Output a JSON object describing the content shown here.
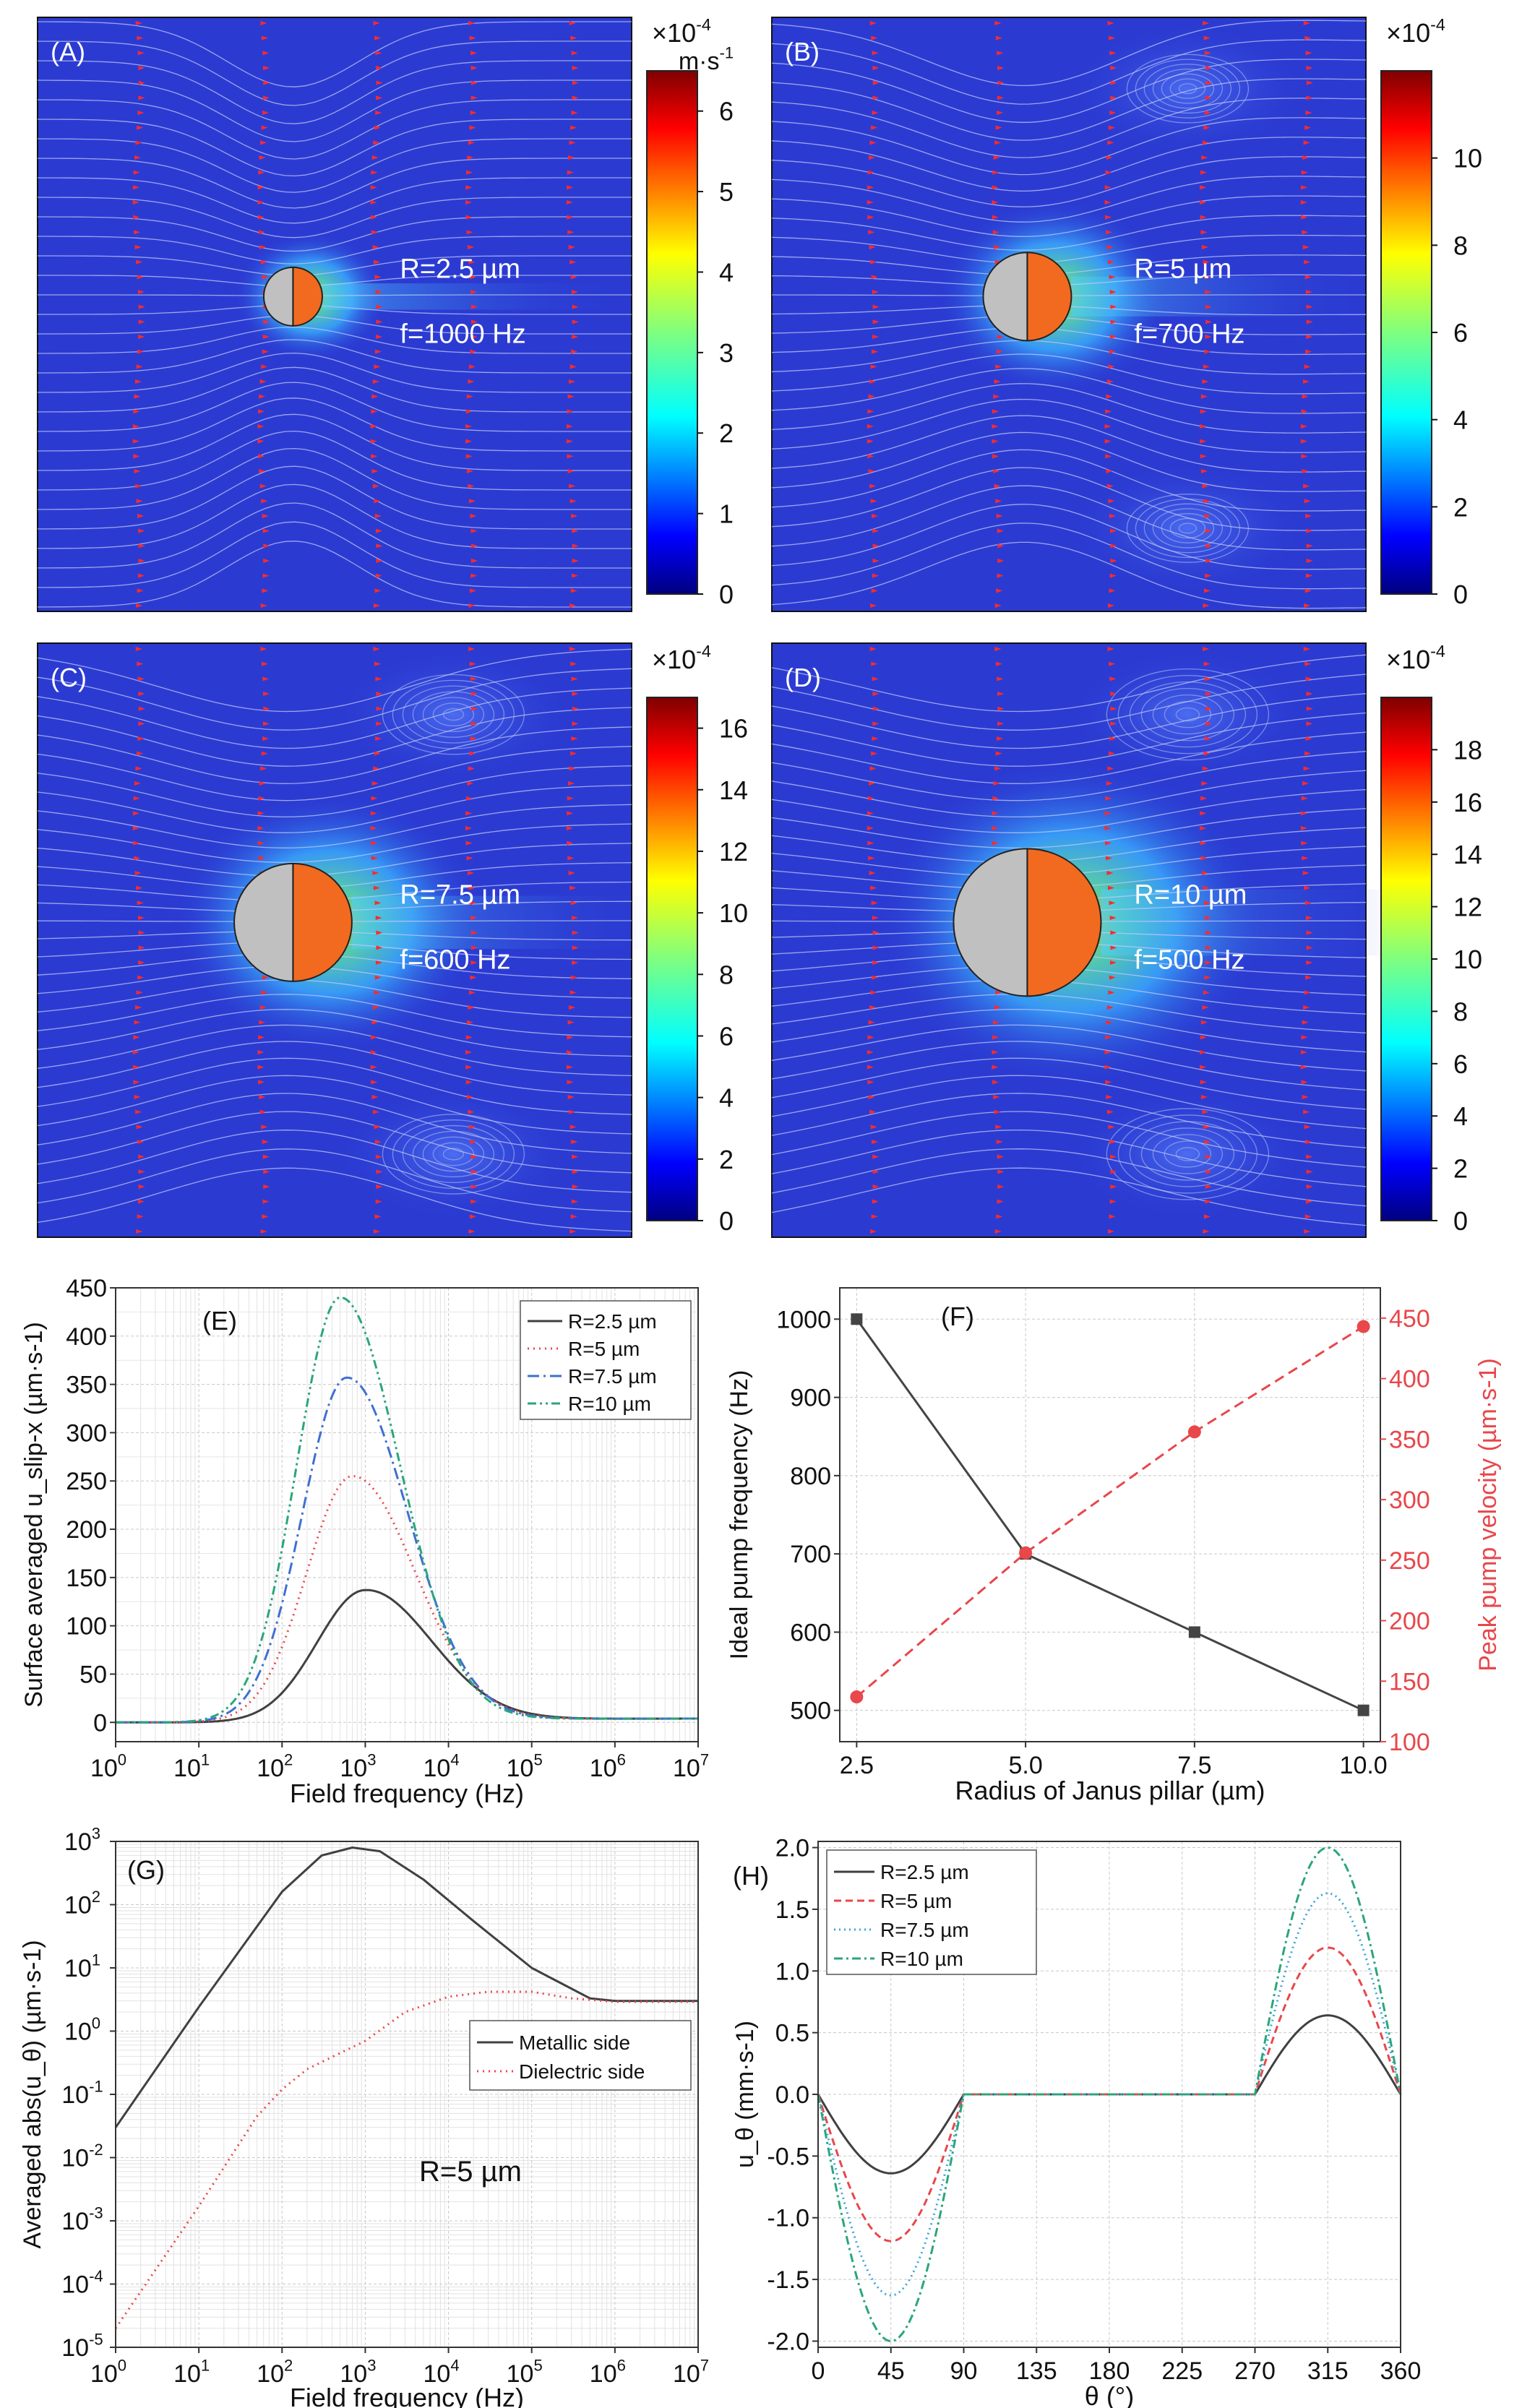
{
  "fields": [
    {
      "label": "(A)",
      "radius_text": "R=2.5 µm",
      "freq_text": "f=1000 Hz",
      "exponent": "×10^-4",
      "unit": "m·s-1",
      "ticks": [
        "0",
        "1",
        "2",
        "3",
        "4",
        "5",
        "6"
      ],
      "cmax": 6.5,
      "r": 2.5,
      "vortex": false
    },
    {
      "label": "(B)",
      "radius_text": "R=5 µm",
      "freq_text": "f=700 Hz",
      "exponent": "×10^-4",
      "unit": "",
      "ticks": [
        "0",
        "2",
        "4",
        "6",
        "8",
        "10"
      ],
      "cmax": 12,
      "r": 5,
      "vortex": true
    },
    {
      "label": "(C)",
      "radius_text": "R=7.5 µm",
      "freq_text": "f=600 Hz",
      "exponent": "×10^-4",
      "unit": "",
      "ticks": [
        "0",
        "2",
        "4",
        "6",
        "8",
        "10",
        "12",
        "14",
        "16"
      ],
      "cmax": 17,
      "r": 7.5,
      "vortex": true
    },
    {
      "label": "(D)",
      "radius_text": "R=10 µm",
      "freq_text": "f=500 Hz",
      "exponent": "×10^-4",
      "unit": "",
      "ticks": [
        "0",
        "2",
        "4",
        "6",
        "8",
        "10",
        "12",
        "14",
        "16",
        "18"
      ],
      "cmax": 20,
      "r": 10,
      "vortex": true
    }
  ],
  "chart_data": [
    {
      "panel": "(E)",
      "type": "line",
      "xlabel": "Field frequency (Hz)",
      "ylabel": "Surface averaged u_slip-x (µm·s-1)",
      "xscale": "log",
      "xlim": [
        1,
        10000000
      ],
      "ylim": [
        -20,
        450
      ],
      "xticks": [
        {
          "v": 1,
          "e": "0"
        },
        {
          "v": 10,
          "e": "1"
        },
        {
          "v": 100,
          "e": "2"
        },
        {
          "v": 1000,
          "e": "3"
        },
        {
          "v": 10000,
          "e": "4"
        },
        {
          "v": 100000,
          "e": "5"
        },
        {
          "v": 1000000,
          "e": "6"
        },
        {
          "v": 10000000,
          "e": "7"
        }
      ],
      "yticks": [
        0,
        50,
        100,
        150,
        200,
        250,
        300,
        350,
        400,
        450
      ],
      "legend_position": "top-right",
      "series": [
        {
          "name": "R=2.5 µm",
          "color": "#404040",
          "dash": "",
          "peak": 137,
          "fpeak": 1000,
          "width": 1.05
        },
        {
          "name": "R=5 µm",
          "color": "#e8474b",
          "dash": "2,6",
          "peak": 255,
          "fpeak": 700,
          "width": 1.0
        },
        {
          "name": "R=7.5 µm",
          "color": "#3f6fd3",
          "dash": "16,6,3,6",
          "peak": 357,
          "fpeak": 600,
          "width": 0.97
        },
        {
          "name": "R=10 µm",
          "color": "#2aa67a",
          "dash": "12,5,3,5,3,5",
          "peak": 440,
          "fpeak": 500,
          "width": 0.95
        }
      ]
    },
    {
      "panel": "(F)",
      "type": "line",
      "xlabel": "Radius of Janus pillar (µm)",
      "ylabel_left": "Ideal pump frequency (Hz)",
      "ylabel_right": "Peak pump velocity (µm·s-1)",
      "x": [
        2.5,
        5.0,
        7.5,
        10.0
      ],
      "xticks": [
        "2.5",
        "5.0",
        "7.5",
        "10.0"
      ],
      "xlim": [
        2.25,
        10.25
      ],
      "ylim_left": [
        460,
        1040
      ],
      "yticks_left": [
        500,
        600,
        700,
        800,
        900,
        1000
      ],
      "ylim_right": [
        100,
        475
      ],
      "yticks_right": [
        100,
        150,
        200,
        250,
        300,
        350,
        400,
        450
      ],
      "series": [
        {
          "name": "Ideal pump frequency",
          "axis": "left",
          "values": [
            1000,
            700,
            600,
            500
          ],
          "color": "#444444"
        },
        {
          "name": "Peak pump velocity",
          "axis": "right",
          "values": [
            137,
            256,
            356,
            443
          ],
          "color": "#e8474b"
        }
      ]
    },
    {
      "panel": "(G)",
      "type": "line",
      "xlabel": "Field frequency (Hz)",
      "ylabel": "Averaged abs(u_θ) (µm·s-1)",
      "xscale": "log",
      "yscale": "log",
      "xlim": [
        1,
        10000000
      ],
      "ylim": [
        1e-05,
        1000
      ],
      "xticks": [
        {
          "v": 1,
          "e": "0"
        },
        {
          "v": 10,
          "e": "1"
        },
        {
          "v": 100,
          "e": "2"
        },
        {
          "v": 1000,
          "e": "3"
        },
        {
          "v": 10000,
          "e": "4"
        },
        {
          "v": 100000,
          "e": "5"
        },
        {
          "v": 1000000,
          "e": "6"
        },
        {
          "v": 10000000,
          "e": "7"
        }
      ],
      "yticks": [
        {
          "v": 1e-05,
          "e": "-5"
        },
        {
          "v": 0.0001,
          "e": "-4"
        },
        {
          "v": 0.001,
          "e": "-3"
        },
        {
          "v": 0.01,
          "e": "-2"
        },
        {
          "v": 0.1,
          "e": "-1"
        },
        {
          "v": 1,
          "e": "0"
        },
        {
          "v": 10,
          "e": "1"
        },
        {
          "v": 100,
          "e": "2"
        },
        {
          "v": 1000,
          "e": "3"
        }
      ],
      "annotation": "R=5 µm",
      "legend_position": "middle-right",
      "series": [
        {
          "name": "Metallic side",
          "color": "#404040",
          "dash": "",
          "points": [
            [
              1,
              0.03
            ],
            [
              10,
              2.4
            ],
            [
              100,
              160
            ],
            [
              300,
              600
            ],
            [
              700,
              800
            ],
            [
              1500,
              700
            ],
            [
              5000,
              250
            ],
            [
              20000,
              55
            ],
            [
              100000,
              10
            ],
            [
              500000,
              3.3
            ],
            [
              1000000,
              3
            ],
            [
              10000000,
              3
            ]
          ]
        },
        {
          "name": "Dielectric side",
          "color": "#e8474b",
          "dash": "2,6",
          "points": [
            [
              1,
              2e-05
            ],
            [
              10,
              0.0017
            ],
            [
              50,
              0.045
            ],
            [
              100,
              0.12
            ],
            [
              200,
              0.25
            ],
            [
              500,
              0.45
            ],
            [
              1000,
              0.7
            ],
            [
              3000,
              2
            ],
            [
              10000,
              3.5
            ],
            [
              30000,
              4.2
            ],
            [
              100000,
              4.2
            ],
            [
              300000,
              3.3
            ],
            [
              1000000,
              2.9
            ],
            [
              10000000,
              2.9
            ]
          ]
        }
      ]
    },
    {
      "panel": "(H)",
      "type": "line",
      "xlabel": "θ (°)",
      "ylabel": "u_θ (mm·s-1)",
      "xlim": [
        0,
        360
      ],
      "ylim": [
        -2.05,
        2.05
      ],
      "xticks": [
        "0",
        "45",
        "90",
        "135",
        "180",
        "225",
        "270",
        "315",
        "360"
      ],
      "yticks": [
        "-2.0",
        "-1.5",
        "-1.0",
        "-0.5",
        "0.0",
        "0.5",
        "1.0",
        "1.5",
        "2.0"
      ],
      "legend_position": "top-left",
      "series": [
        {
          "name": "R=2.5 µm",
          "color": "#404040",
          "dash": "",
          "amp": 0.64
        },
        {
          "name": "R=5 µm",
          "color": "#e8474b",
          "dash": "10,6",
          "amp": 1.19
        },
        {
          "name": "R=7.5 µm",
          "color": "#3aa5d8",
          "dash": "2,5",
          "amp": 1.63
        },
        {
          "name": "R=10 µm",
          "color": "#2aa67a",
          "dash": "12,5,3,5",
          "amp": 2.0
        }
      ]
    }
  ]
}
